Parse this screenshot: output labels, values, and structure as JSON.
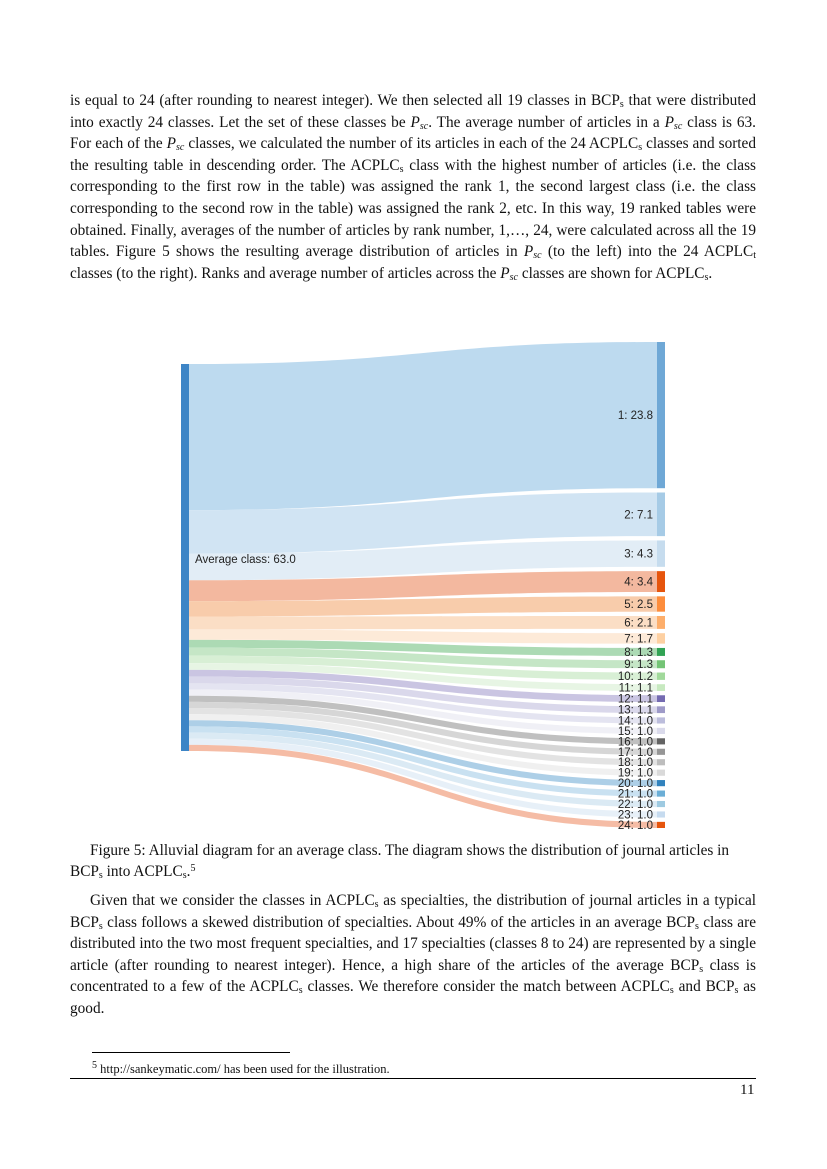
{
  "paragraph1": {
    "s1": "is equal to 24 (after rounding to nearest integer). We then selected all 19 classes in BCP",
    "s1_sub": "s",
    "s2": " that were distributed into exactly 24 classes. Let the set of these classes be ",
    "psc_p": "P",
    "psc_sub": "sc",
    "s3": ". The average number of articles in a ",
    "s4": " class is 63. For each of the ",
    "s5": " classes, we calculated the number of its articles in each of the 24 ACPLC",
    "s5_sub": "s",
    "s6": " classes and sorted the resulting table in descending order. The ACPLC",
    "s6_sub": "s",
    "s7": " class with the highest number of articles (i.e. the class corresponding to the first row in the table) was assigned the rank 1, the second largest class (i.e. the class corresponding to the second row in the table) was assigned the rank 2, etc. In this way, 19 ranked tables were obtained. Finally, averages of the number of articles by rank number, 1,…, 24, were calculated across all the 19 tables. Figure 5 shows the resulting average distribution of articles in ",
    "s8": " (to the left) into the 24 ACPLC",
    "s8_sub": "t",
    "s9": " classes (to the right). Ranks and average number of articles across the ",
    "s10": " classes are shown for ACPLC",
    "s10_sub": "s",
    "s11": "."
  },
  "chart_data": {
    "type": "sankey",
    "source": {
      "label": "Average class: 63.0",
      "value": 63.0,
      "color": "#3d85c6"
    },
    "targets": [
      {
        "label": "1: 23.8",
        "value": 23.8,
        "node_color": "#6fa8d6",
        "flow_color": "#b9d8ee"
      },
      {
        "label": "2: 7.1",
        "value": 7.1,
        "node_color": "#a6cbe6",
        "flow_color": "#cfe3f2"
      },
      {
        "label": "3: 4.3",
        "value": 4.3,
        "node_color": "#c6dcee",
        "flow_color": "#e0ecf6"
      },
      {
        "label": "4: 3.4",
        "value": 3.4,
        "node_color": "#e6550d",
        "flow_color": "#f2b49a"
      },
      {
        "label": "5: 2.5",
        "value": 2.5,
        "node_color": "#fd8d3c",
        "flow_color": "#f8c9a6"
      },
      {
        "label": "6: 2.1",
        "value": 2.1,
        "node_color": "#fdae6b",
        "flow_color": "#fbdcc2"
      },
      {
        "label": "7: 1.7",
        "value": 1.7,
        "node_color": "#fdd0a2",
        "flow_color": "#fde9d6"
      },
      {
        "label": "8: 1.3",
        "value": 1.3,
        "node_color": "#31a354",
        "flow_color": "#a8d8b0"
      },
      {
        "label": "9: 1.3",
        "value": 1.3,
        "node_color": "#74c476",
        "flow_color": "#c2e5c3"
      },
      {
        "label": "10: 1.2",
        "value": 1.2,
        "node_color": "#a1d99b",
        "flow_color": "#d6eed3"
      },
      {
        "label": "11: 1.1",
        "value": 1.1,
        "node_color": "#c7e9c0",
        "flow_color": "#e6f4e3"
      },
      {
        "label": "12: 1.1",
        "value": 1.1,
        "node_color": "#756bb1",
        "flow_color": "#c7c2e0"
      },
      {
        "label": "13: 1.1",
        "value": 1.1,
        "node_color": "#9e9ac8",
        "flow_color": "#d8d6ea"
      },
      {
        "label": "14: 1.0",
        "value": 1.0,
        "node_color": "#bcbddc",
        "flow_color": "#e3e3f0"
      },
      {
        "label": "15: 1.0",
        "value": 1.0,
        "node_color": "#dadaeb",
        "flow_color": "#efeff6"
      },
      {
        "label": "16: 1.0",
        "value": 1.0,
        "node_color": "#636363",
        "flow_color": "#bdbdbd"
      },
      {
        "label": "17: 1.0",
        "value": 1.0,
        "node_color": "#969696",
        "flow_color": "#d4d4d4"
      },
      {
        "label": "18: 1.0",
        "value": 1.0,
        "node_color": "#bdbdbd",
        "flow_color": "#e2e2e2"
      },
      {
        "label": "19: 1.0",
        "value": 1.0,
        "node_color": "#d9d9d9",
        "flow_color": "#efefef"
      },
      {
        "label": "20: 1.0",
        "value": 1.0,
        "node_color": "#3182bd",
        "flow_color": "#a9cce6"
      },
      {
        "label": "21: 1.0",
        "value": 1.0,
        "node_color": "#6baed6",
        "flow_color": "#c6dff0"
      },
      {
        "label": "22: 1.0",
        "value": 1.0,
        "node_color": "#9ecae1",
        "flow_color": "#d9e9f3"
      },
      {
        "label": "23: 1.0",
        "value": 1.0,
        "node_color": "#c6dbef",
        "flow_color": "#e6eff8"
      },
      {
        "label": "24: 1.0",
        "value": 1.0,
        "node_color": "#e6550d",
        "flow_color": "#f4b8a0"
      }
    ]
  },
  "caption": {
    "text1": "Figure 5: Alluvial diagram for an average class. The diagram shows the distribution of journal articles in BCP",
    "sub1": "s",
    "text2": " into ACPLC",
    "sub2": "s",
    "text3": ".",
    "sup": "5"
  },
  "paragraph2": {
    "s1": "Given that we consider the classes in ACPLC",
    "s1_sub": "s",
    "s2": " as specialties, the distribution of journal articles in a typical BCP",
    "s2_sub": "s",
    "s3": " class follows a skewed distribution of specialties. About 49% of the articles in an average BCP",
    "s3_sub": "s",
    "s4": " class are distributed into the two most frequent specialties, and 17 specialties (classes 8 to 24) are represented by a single article (after rounding to nearest integer). Hence, a high share of the articles of the average BCP",
    "s4_sub": "s",
    "s5": " class is concentrated to a few of the ACPLC",
    "s5_sub": "s",
    "s6": " classes. We therefore consider the match between ACPLC",
    "s6_sub": "s",
    "s7": " and BCP",
    "s7_sub": "s",
    "s8": " as good."
  },
  "footnote": {
    "mark": "5",
    "text": " http://sankeymatic.com/ has been used for the illustration."
  },
  "page_number": "11"
}
